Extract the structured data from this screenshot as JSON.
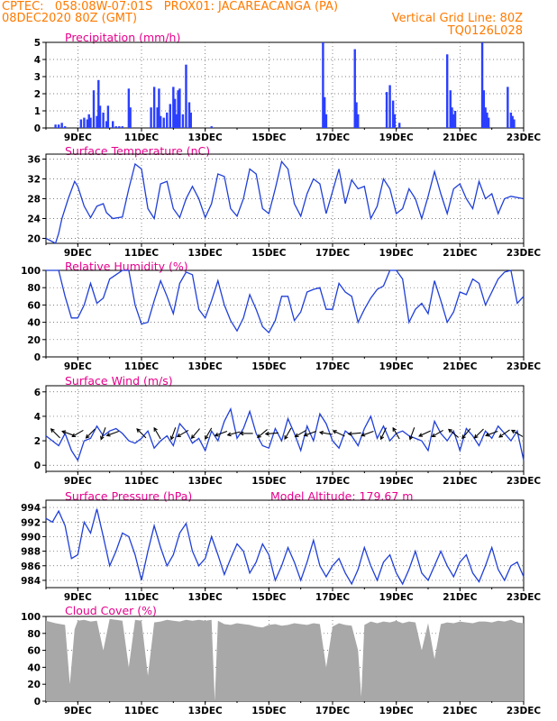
{
  "header": {
    "line1_left": "CPTEC:   058:08W-07:01S   PROX01: JACAREACANGA (PA)",
    "line2_left": "08DEC2020 80Z (GMT)",
    "line2_right": "Vertical Grid Line: 80Z",
    "line3_right": "TQ0126L028"
  },
  "colors": {
    "header": "#ff7a00",
    "title": "#e8008c",
    "line": "#1f3fd8",
    "bar": "#2a3fff",
    "cloud": "#a8a8a8",
    "frame": "#000000"
  },
  "x_labels": [
    "9DEC",
    "11DEC",
    "13DEC",
    "15DEC",
    "17DEC",
    "19DEC",
    "21DEC",
    "23DEC"
  ],
  "chart_data": [
    {
      "type": "bar",
      "id": "precip",
      "title": "Precipitation (mm/h)",
      "ylim": [
        0,
        5
      ],
      "yticks": [
        "0",
        "1",
        "2",
        "3",
        "4",
        "5"
      ],
      "x_range": [
        8.0,
        23.0
      ],
      "x": [
        8.3,
        8.4,
        8.5,
        8.6,
        9.1,
        9.2,
        9.3,
        9.35,
        9.4,
        9.5,
        9.6,
        9.65,
        9.7,
        9.8,
        9.9,
        9.95,
        10.1,
        10.2,
        10.3,
        10.4,
        10.6,
        10.65,
        11.3,
        11.4,
        11.5,
        11.55,
        11.6,
        11.7,
        11.8,
        11.9,
        12.0,
        12.05,
        12.1,
        12.15,
        12.2,
        12.3,
        12.4,
        12.5,
        12.55,
        13.2,
        16.7,
        16.75,
        16.8,
        17.7,
        17.75,
        17.8,
        18.7,
        18.8,
        18.9,
        18.95,
        19.1,
        20.6,
        20.7,
        20.75,
        20.8,
        20.85,
        21.7,
        21.75,
        21.8,
        21.85,
        21.9,
        22.5,
        22.6,
        22.65,
        22.7
      ],
      "values": [
        0.2,
        0.2,
        0.3,
        0.1,
        0.5,
        0.6,
        0.5,
        0.8,
        0.6,
        2.2,
        0.7,
        2.8,
        1.3,
        0.9,
        0.4,
        1.3,
        0.4,
        0.1,
        0.1,
        0.1,
        2.3,
        1.2,
        1.2,
        2.4,
        1.2,
        2.3,
        0.7,
        0.6,
        0.9,
        1.4,
        2.4,
        1.7,
        0.8,
        2.2,
        2.3,
        0.8,
        3.7,
        1.5,
        0.9,
        0.1,
        5.0,
        1.8,
        0.8,
        4.6,
        1.5,
        0.8,
        2.1,
        2.5,
        1.6,
        0.8,
        0.3,
        4.3,
        2.2,
        1.2,
        0.8,
        1.0,
        5.0,
        2.2,
        1.2,
        0.9,
        0.6,
        2.4,
        0.9,
        0.7,
        0.5
      ]
    },
    {
      "type": "line",
      "id": "temp",
      "title": "Surface Temperature (nC)",
      "ylim": [
        19,
        37
      ],
      "yticks": [
        "20",
        "24",
        "28",
        "32",
        "36"
      ],
      "x_range": [
        8.0,
        23.0
      ],
      "x": [
        8.0,
        8.3,
        8.4,
        8.5,
        8.7,
        8.9,
        9.0,
        9.2,
        9.4,
        9.6,
        9.8,
        9.9,
        10.1,
        10.4,
        10.6,
        10.8,
        11.0,
        11.2,
        11.4,
        11.6,
        11.8,
        12.0,
        12.2,
        12.4,
        12.6,
        12.8,
        13.0,
        13.2,
        13.4,
        13.6,
        13.8,
        14.0,
        14.2,
        14.4,
        14.6,
        14.8,
        15.0,
        15.2,
        15.4,
        15.6,
        15.8,
        16.0,
        16.2,
        16.4,
        16.6,
        16.8,
        17.0,
        17.2,
        17.4,
        17.6,
        17.8,
        18.0,
        18.2,
        18.4,
        18.6,
        18.8,
        19.0,
        19.2,
        19.4,
        19.6,
        19.8,
        20.0,
        20.2,
        20.4,
        20.6,
        20.8,
        21.0,
        21.2,
        21.4,
        21.6,
        21.8,
        22.0,
        22.2,
        22.4,
        22.6,
        23.0
      ],
      "values": [
        20.0,
        19.0,
        21.0,
        24.0,
        28.0,
        31.5,
        30.5,
        26.5,
        24.2,
        26.5,
        27.0,
        25.2,
        24.0,
        24.3,
        30.0,
        35.0,
        34.0,
        26.0,
        24.0,
        31.0,
        31.5,
        26.0,
        24.2,
        28.0,
        30.5,
        28.0,
        24.2,
        27.0,
        33.0,
        32.5,
        26.0,
        24.5,
        28.0,
        34.0,
        33.0,
        26.0,
        25.0,
        30.0,
        35.5,
        34.0,
        27.0,
        24.5,
        29.0,
        32.0,
        31.0,
        25.0,
        29.5,
        34.0,
        27.0,
        31.8,
        30.0,
        30.5,
        24.0,
        26.5,
        32.0,
        30.0,
        25.0,
        26.0,
        30.0,
        28.0,
        24.0,
        28.5,
        33.5,
        29.0,
        25.0,
        30.0,
        31.0,
        28.0,
        26.0,
        31.5,
        28.0,
        29.0,
        25.0,
        28.0,
        28.5,
        28.0
      ]
    },
    {
      "type": "line",
      "id": "rh",
      "title": "Relative Humidity (%)",
      "ylim": [
        0,
        100
      ],
      "yticks": [
        "0",
        "20",
        "40",
        "60",
        "80",
        "100"
      ],
      "x_range": [
        8.0,
        23.0
      ],
      "x": [
        8.0,
        8.4,
        8.6,
        8.8,
        9.0,
        9.2,
        9.4,
        9.6,
        9.8,
        10.0,
        10.2,
        10.4,
        10.6,
        10.8,
        11.0,
        11.2,
        11.4,
        11.6,
        11.8,
        12.0,
        12.2,
        12.4,
        12.6,
        12.8,
        13.0,
        13.2,
        13.4,
        13.6,
        13.8,
        14.0,
        14.2,
        14.4,
        14.6,
        14.8,
        15.0,
        15.2,
        15.4,
        15.6,
        15.8,
        16.0,
        16.2,
        16.4,
        16.6,
        16.8,
        17.0,
        17.2,
        17.4,
        17.6,
        17.8,
        18.0,
        18.2,
        18.4,
        18.6,
        18.8,
        19.0,
        19.2,
        19.4,
        19.6,
        19.8,
        20.0,
        20.2,
        20.4,
        20.6,
        20.8,
        21.0,
        21.2,
        21.4,
        21.6,
        21.8,
        22.0,
        22.2,
        22.4,
        22.6,
        22.8,
        23.0
      ],
      "values": [
        100,
        100,
        70,
        45,
        45,
        60,
        85,
        62,
        68,
        90,
        95,
        100,
        100,
        60,
        38,
        40,
        65,
        88,
        70,
        50,
        85,
        98,
        95,
        55,
        45,
        65,
        88,
        60,
        42,
        30,
        45,
        72,
        55,
        35,
        28,
        42,
        70,
        70,
        42,
        52,
        75,
        78,
        80,
        55,
        55,
        85,
        75,
        70,
        40,
        55,
        68,
        78,
        82,
        100,
        100,
        90,
        40,
        55,
        62,
        50,
        88,
        65,
        40,
        52,
        75,
        72,
        90,
        85,
        60,
        75,
        90,
        98,
        100,
        62,
        70
      ]
    },
    {
      "type": "line",
      "id": "wind",
      "title": "Surface Wind (m/s)",
      "ylim": [
        -0.5,
        6.5
      ],
      "yticks": [
        "0",
        "2",
        "4",
        "6"
      ],
      "x_range": [
        8.0,
        23.0
      ],
      "x": [
        8.0,
        8.2,
        8.4,
        8.6,
        8.8,
        9.0,
        9.2,
        9.4,
        9.6,
        9.8,
        10.0,
        10.2,
        10.4,
        10.6,
        10.8,
        11.0,
        11.2,
        11.4,
        11.6,
        11.8,
        12.0,
        12.2,
        12.4,
        12.6,
        12.8,
        13.0,
        13.2,
        13.4,
        13.6,
        13.8,
        14.0,
        14.2,
        14.4,
        14.6,
        14.8,
        15.0,
        15.2,
        15.4,
        15.6,
        15.8,
        16.0,
        16.2,
        16.4,
        16.6,
        16.8,
        17.0,
        17.2,
        17.4,
        17.6,
        17.8,
        18.0,
        18.2,
        18.4,
        18.6,
        18.8,
        19.0,
        19.2,
        19.4,
        19.6,
        19.8,
        20.0,
        20.2,
        20.4,
        20.6,
        20.8,
        21.0,
        21.2,
        21.4,
        21.6,
        21.8,
        22.0,
        22.2,
        22.4,
        22.6,
        22.8,
        23.0
      ],
      "values": [
        2.4,
        2.0,
        1.6,
        2.6,
        1.2,
        0.4,
        2.0,
        2.2,
        3.2,
        2.4,
        2.8,
        3.0,
        2.6,
        2.0,
        1.8,
        2.2,
        2.8,
        1.4,
        2.0,
        2.4,
        1.6,
        3.4,
        2.8,
        1.8,
        2.2,
        1.2,
        2.8,
        2.0,
        3.6,
        4.6,
        2.2,
        3.0,
        4.4,
        2.6,
        1.6,
        1.4,
        3.0,
        2.0,
        3.8,
        2.6,
        1.2,
        3.2,
        2.0,
        4.2,
        3.4,
        2.0,
        1.4,
        2.8,
        2.4,
        1.6,
        3.0,
        4.0,
        2.2,
        3.2,
        2.0,
        2.6,
        2.8,
        2.4,
        2.2,
        2.0,
        1.2,
        3.6,
        2.6,
        2.0,
        2.8,
        1.2,
        3.0,
        2.4,
        1.6,
        2.8,
        2.2,
        3.2,
        2.6,
        2.0,
        2.8,
        0.4
      ],
      "vectors_x": [
        8.3,
        8.7,
        9.0,
        9.4,
        9.8,
        10.1,
        11.0,
        11.5,
        12.0,
        12.3,
        12.7,
        13.1,
        13.5,
        13.9,
        14.3,
        14.8,
        15.1,
        15.6,
        16.0,
        16.3,
        16.8,
        17.2,
        17.7,
        18.1,
        18.6,
        19.0,
        19.5,
        19.9,
        20.3,
        20.8,
        21.2,
        21.6,
        22.0,
        22.4,
        22.8
      ],
      "vectors_dir": [
        135,
        160,
        210,
        225,
        250,
        200,
        135,
        120,
        250,
        210,
        230,
        240,
        200,
        195,
        180,
        220,
        185,
        240,
        210,
        200,
        170,
        155,
        185,
        200,
        245,
        120,
        250,
        205,
        210,
        140,
        230,
        225,
        200,
        215,
        150
      ]
    },
    {
      "type": "line",
      "id": "pres",
      "title": "Surface Pressure (hPa)",
      "subtitle": "Model Altitude: 179.67 m",
      "ylim": [
        983,
        995
      ],
      "yticks": [
        "984",
        "986",
        "988",
        "990",
        "992",
        "994"
      ],
      "x_range": [
        8.0,
        23.0
      ],
      "x": [
        8.0,
        8.2,
        8.4,
        8.6,
        8.8,
        9.0,
        9.2,
        9.4,
        9.6,
        9.8,
        10.0,
        10.2,
        10.4,
        10.6,
        10.8,
        11.0,
        11.2,
        11.4,
        11.6,
        11.8,
        12.0,
        12.2,
        12.4,
        12.6,
        12.8,
        13.0,
        13.2,
        13.4,
        13.6,
        13.8,
        14.0,
        14.2,
        14.4,
        14.6,
        14.8,
        15.0,
        15.2,
        15.4,
        15.6,
        15.8,
        16.0,
        16.2,
        16.4,
        16.6,
        16.8,
        17.0,
        17.2,
        17.4,
        17.6,
        17.8,
        18.0,
        18.2,
        18.4,
        18.6,
        18.8,
        19.0,
        19.2,
        19.4,
        19.6,
        19.8,
        20.0,
        20.2,
        20.4,
        20.6,
        20.8,
        21.0,
        21.2,
        21.4,
        21.6,
        21.8,
        22.0,
        22.2,
        22.4,
        22.6,
        22.8,
        23.0
      ],
      "values": [
        992.5,
        992.0,
        993.5,
        991.5,
        987.0,
        987.5,
        992.0,
        990.5,
        993.8,
        990.0,
        986.0,
        988.0,
        990.5,
        990.0,
        987.5,
        984.0,
        988.0,
        991.5,
        988.5,
        986.0,
        987.5,
        990.5,
        991.8,
        988.0,
        986.0,
        987.0,
        990.0,
        987.5,
        984.8,
        987.0,
        989.0,
        988.0,
        985.0,
        986.5,
        989.0,
        987.5,
        984.0,
        986.0,
        988.5,
        986.5,
        984.0,
        986.5,
        989.5,
        986.0,
        984.5,
        986.0,
        987.0,
        985.0,
        983.5,
        985.5,
        988.5,
        986.0,
        984.0,
        986.5,
        987.5,
        985.0,
        983.5,
        985.5,
        988.0,
        985.0,
        984.0,
        986.0,
        988.0,
        986.0,
        984.5,
        986.5,
        987.5,
        985.0,
        983.8,
        986.0,
        988.5,
        985.5,
        984.0,
        986.0,
        986.5,
        984.5
      ]
    },
    {
      "type": "area",
      "id": "cloud",
      "title": "Cloud Cover (%)",
      "ylim": [
        0,
        100
      ],
      "yticks": [
        "0",
        "20",
        "40",
        "60",
        "80",
        "100"
      ],
      "x_range": [
        8.0,
        23.0
      ],
      "x": [
        8.0,
        8.3,
        8.6,
        8.75,
        8.9,
        9.0,
        9.2,
        9.4,
        9.6,
        9.8,
        10.0,
        10.2,
        10.4,
        10.6,
        10.8,
        11.0,
        11.2,
        11.4,
        11.6,
        11.8,
        12.0,
        12.2,
        12.4,
        12.6,
        12.8,
        13.0,
        13.2,
        13.3,
        13.4,
        13.6,
        13.8,
        14.0,
        14.2,
        14.4,
        14.6,
        14.8,
        15.0,
        15.2,
        15.4,
        15.6,
        15.8,
        16.0,
        16.2,
        16.4,
        16.6,
        16.8,
        17.0,
        17.2,
        17.4,
        17.6,
        17.8,
        17.9,
        18.0,
        18.2,
        18.4,
        18.6,
        18.8,
        19.0,
        19.2,
        19.4,
        19.6,
        19.8,
        20.0,
        20.2,
        20.4,
        20.6,
        20.8,
        21.0,
        21.2,
        21.4,
        21.6,
        21.8,
        22.0,
        22.2,
        22.4,
        22.6,
        22.8,
        23.0
      ],
      "values": [
        95,
        92,
        90,
        20,
        85,
        95,
        96,
        94,
        95,
        60,
        97,
        96,
        95,
        40,
        96,
        95,
        30,
        93,
        94,
        96,
        95,
        94,
        96,
        95,
        96,
        95,
        96,
        0,
        95,
        91,
        90,
        92,
        91,
        90,
        88,
        87,
        90,
        91,
        89,
        90,
        92,
        91,
        90,
        92,
        91,
        40,
        88,
        92,
        90,
        89,
        60,
        5,
        90,
        94,
        92,
        94,
        93,
        95,
        92,
        94,
        93,
        60,
        92,
        50,
        91,
        93,
        92,
        94,
        93,
        92,
        94,
        94,
        93,
        95,
        94,
        96,
        93,
        92
      ]
    }
  ]
}
